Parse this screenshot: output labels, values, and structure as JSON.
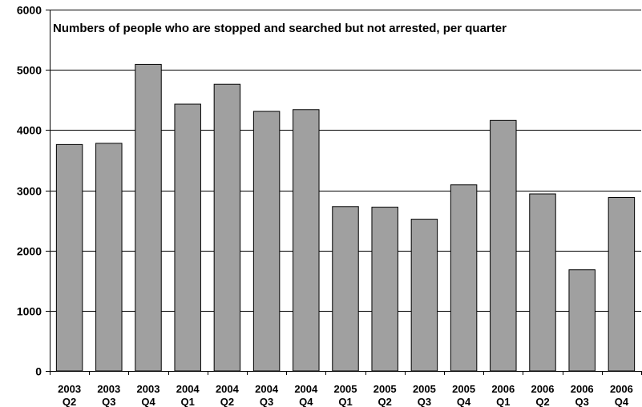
{
  "chart_data": {
    "type": "bar",
    "title": "Numbers of people who are stopped and searched but not arrested, per quarter",
    "xlabel": "",
    "ylabel": "",
    "ylim": [
      0,
      6000
    ],
    "yticks": [
      0,
      1000,
      2000,
      3000,
      4000,
      5000,
      6000
    ],
    "grid": true,
    "categories": [
      [
        "2003",
        "Q2"
      ],
      [
        "2003",
        "Q3"
      ],
      [
        "2003",
        "Q4"
      ],
      [
        "2004",
        "Q1"
      ],
      [
        "2004",
        "Q2"
      ],
      [
        "2004",
        "Q3"
      ],
      [
        "2004",
        "Q4"
      ],
      [
        "2005",
        "Q1"
      ],
      [
        "2005",
        "Q2"
      ],
      [
        "2005",
        "Q3"
      ],
      [
        "2005",
        "Q4"
      ],
      [
        "2006",
        "Q1"
      ],
      [
        "2006",
        "Q2"
      ],
      [
        "2006",
        "Q3"
      ],
      [
        "2006",
        "Q4"
      ]
    ],
    "values": [
      3760,
      3780,
      5090,
      4430,
      4760,
      4310,
      4340,
      2730,
      2720,
      2520,
      3090,
      4160,
      2940,
      1680,
      2880
    ],
    "colors": {
      "bar_fill": "#a0a0a0",
      "bar_stroke": "#000000",
      "grid": "#000000",
      "background": "#ffffff"
    }
  }
}
